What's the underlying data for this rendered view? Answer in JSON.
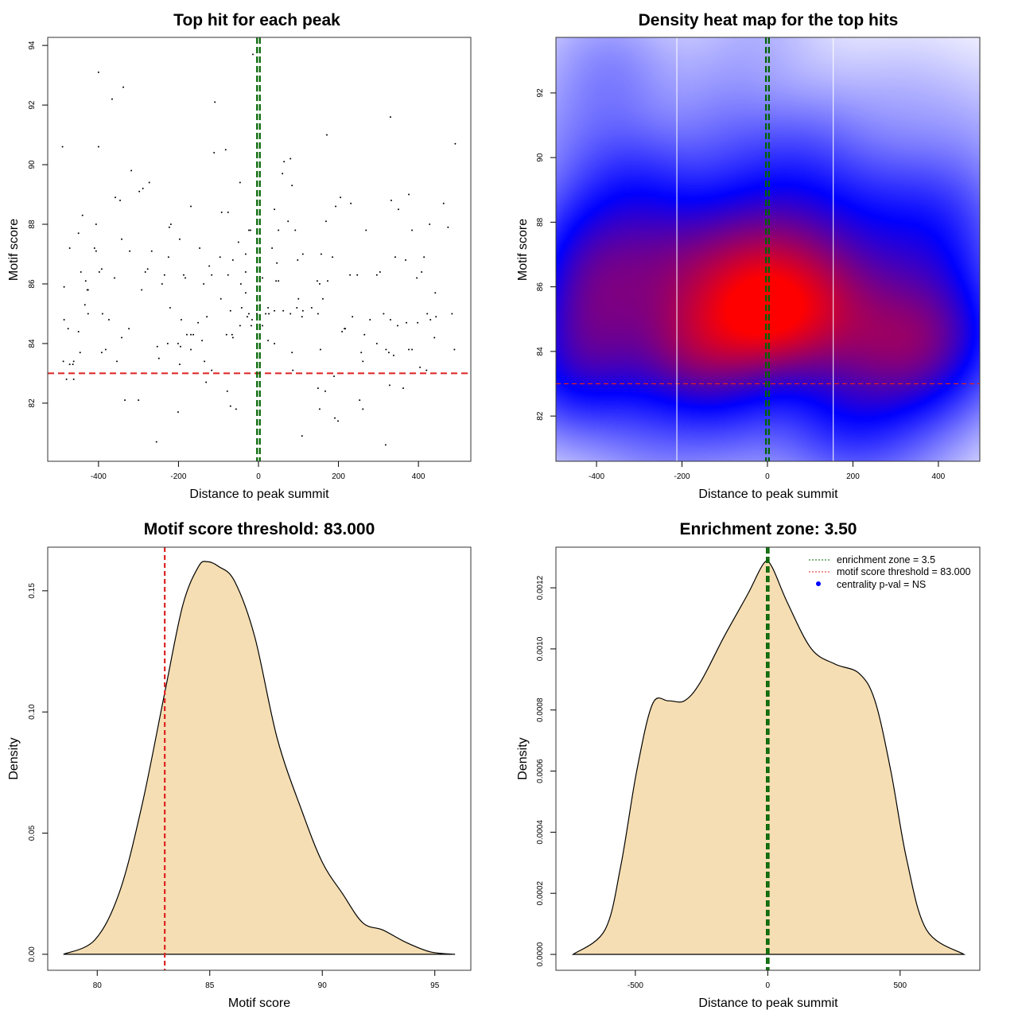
{
  "chart_data": [
    {
      "type": "scatter",
      "title": "Top hit for each peak",
      "xlabel": "Distance to peak summit",
      "ylabel": "Motif score",
      "xlim": [
        -527,
        531
      ],
      "ylim": [
        80.05,
        94.27
      ],
      "xticks": [
        "-400",
        "-200",
        "0",
        "200",
        "400"
      ],
      "xtick_values": [
        -400,
        -200,
        0,
        200,
        400
      ],
      "yticks": [
        "82",
        "84",
        "86",
        "88",
        "90",
        "92",
        "94"
      ],
      "ytick_values": [
        82,
        84,
        86,
        88,
        90,
        92,
        94
      ],
      "hlines": [
        {
          "y": 83,
          "color": "#dd2222",
          "style": "dashed"
        }
      ],
      "vlines": [
        {
          "x": -3.5,
          "color": "#006400",
          "style": "dashed"
        },
        {
          "x": 3.5,
          "color": "#006400",
          "style": "dashed"
        }
      ],
      "points": [
        [
          -490,
          90.6
        ],
        [
          -400,
          93.1
        ],
        [
          -338,
          92.6
        ],
        [
          -366,
          92.2
        ],
        [
          -109,
          92.1
        ],
        [
          -400,
          90.6
        ],
        [
          -318,
          89.8
        ],
        [
          -111,
          90.4
        ],
        [
          -82,
          90.5
        ],
        [
          -14,
          93.7
        ],
        [
          330,
          91.6
        ],
        [
          171,
          91.0
        ],
        [
          492,
          90.7
        ],
        [
          80,
          90.2
        ],
        [
          64,
          90.1
        ],
        [
          60,
          89.7
        ],
        [
          84,
          89.3
        ],
        [
          -273,
          89.4
        ],
        [
          -289,
          89.2
        ],
        [
          -298,
          89.1
        ],
        [
          -358,
          88.9
        ],
        [
          -346,
          88.8
        ],
        [
          -46,
          89.4
        ],
        [
          376,
          89.0
        ],
        [
          205,
          88.9
        ],
        [
          193,
          88.6
        ],
        [
          231,
          88.7
        ],
        [
          463,
          88.7
        ],
        [
          332,
          88.8
        ],
        [
          350,
          88.5
        ],
        [
          40,
          88.5
        ],
        [
          -169,
          88.6
        ],
        [
          -440,
          88.3
        ],
        [
          -92,
          88.4
        ],
        [
          -76,
          88.4
        ],
        [
          -406,
          88.0
        ],
        [
          -219,
          88.0
        ],
        [
          -223,
          87.9
        ],
        [
          74,
          88.1
        ],
        [
          169,
          88.1
        ],
        [
          428,
          88.0
        ],
        [
          474,
          87.9
        ],
        [
          -450,
          87.7
        ],
        [
          -20,
          87.8
        ],
        [
          -24,
          87.8
        ],
        [
          50,
          87.8
        ],
        [
          92,
          87.8
        ],
        [
          269,
          87.8
        ],
        [
          384,
          87.8
        ],
        [
          -342,
          87.5
        ],
        [
          -197,
          87.5
        ],
        [
          -50,
          87.4
        ],
        [
          -472,
          87.2
        ],
        [
          -406,
          87.1
        ],
        [
          -410,
          87.2
        ],
        [
          -322,
          87.1
        ],
        [
          -267,
          87.1
        ],
        [
          -147,
          87.2
        ],
        [
          34,
          87.2
        ],
        [
          157,
          87.0
        ],
        [
          185,
          86.9
        ],
        [
          342,
          86.9
        ],
        [
          368,
          86.8
        ],
        [
          414,
          86.9
        ],
        [
          98,
          86.8
        ],
        [
          111,
          87.0
        ],
        [
          -32,
          87.0
        ],
        [
          46,
          86.7
        ],
        [
          -64,
          86.8
        ],
        [
          -123,
          86.6
        ],
        [
          -96,
          86.9
        ],
        [
          -225,
          86.9
        ],
        [
          -277,
          86.5
        ],
        [
          -283,
          86.4
        ],
        [
          -444,
          86.4
        ],
        [
          -398,
          86.4
        ],
        [
          -392,
          86.5
        ],
        [
          -360,
          86.2
        ],
        [
          -292,
          85.8
        ],
        [
          -235,
          86.3
        ],
        [
          -187,
          86.3
        ],
        [
          -183,
          86.2
        ],
        [
          -241,
          86.0
        ],
        [
          -137,
          86.0
        ],
        [
          -117,
          86.3
        ],
        [
          -44,
          86.0
        ],
        [
          -76,
          86.3
        ],
        [
          4,
          86.5
        ],
        [
          -32,
          86.4
        ],
        [
          10,
          86.2
        ],
        [
          44,
          86.1
        ],
        [
          50,
          86.1
        ],
        [
          100,
          85.5
        ],
        [
          147,
          86.1
        ],
        [
          173,
          86.1
        ],
        [
          229,
          86.3
        ],
        [
          247,
          86.3
        ],
        [
          304,
          86.4
        ],
        [
          296,
          86.3
        ],
        [
          396,
          86.2
        ],
        [
          408,
          86.4
        ],
        [
          442,
          85.7
        ],
        [
          484,
          85.0
        ],
        [
          -486,
          85.9
        ],
        [
          -432,
          86.1
        ],
        [
          -428,
          85.8
        ],
        [
          -426,
          85.8
        ],
        [
          -434,
          85.3
        ],
        [
          -390,
          85.0
        ],
        [
          -374,
          84.8
        ],
        [
          -426,
          85.0
        ],
        [
          -486,
          84.8
        ],
        [
          -476,
          84.5
        ],
        [
          -450,
          84.4
        ],
        [
          -342,
          84.2
        ],
        [
          -392,
          83.7
        ],
        [
          -382,
          83.8
        ],
        [
          -446,
          83.7
        ],
        [
          -488,
          83.4
        ],
        [
          -472,
          83.3
        ],
        [
          -462,
          83.4
        ],
        [
          -464,
          83.3
        ],
        [
          -480,
          82.8
        ],
        [
          -462,
          82.8
        ],
        [
          -354,
          83.4
        ],
        [
          -324,
          84.5
        ],
        [
          -249,
          83.5
        ],
        [
          -221,
          85.2
        ],
        [
          -193,
          84.8
        ],
        [
          -179,
          84.3
        ],
        [
          -169,
          84.3
        ],
        [
          -163,
          84.3
        ],
        [
          -151,
          84.7
        ],
        [
          -141,
          84.1
        ],
        [
          -253,
          83.9
        ],
        [
          -227,
          84.0
        ],
        [
          -201,
          84.0
        ],
        [
          -195,
          83.9
        ],
        [
          -169,
          83.8
        ],
        [
          -129,
          84.9
        ],
        [
          -135,
          83.4
        ],
        [
          -94,
          85.5
        ],
        [
          -70,
          85.1
        ],
        [
          -66,
          84.3
        ],
        [
          -80,
          84.3
        ],
        [
          -64,
          84.2
        ],
        [
          -46,
          84.6
        ],
        [
          -28,
          84.9
        ],
        [
          -16,
          84.8
        ],
        [
          -24,
          85.0
        ],
        [
          -32,
          85.7
        ],
        [
          -42,
          85.2
        ],
        [
          -18,
          84.6
        ],
        [
          -4,
          85.0
        ],
        [
          4,
          85.3
        ],
        [
          10,
          84.6
        ],
        [
          18,
          85.0
        ],
        [
          24,
          85.2
        ],
        [
          26,
          85.0
        ],
        [
          40,
          85.1
        ],
        [
          62,
          85.1
        ],
        [
          80,
          85.0
        ],
        [
          96,
          85.2
        ],
        [
          109,
          84.9
        ],
        [
          111,
          85.1
        ],
        [
          24,
          84.1
        ],
        [
          40,
          84.0
        ],
        [
          84,
          83.7
        ],
        [
          86,
          83.1
        ],
        [
          133,
          85.2
        ],
        [
          149,
          85.0
        ],
        [
          153,
          86.0
        ],
        [
          155,
          83.8
        ],
        [
          161,
          85.5
        ],
        [
          215,
          84.5
        ],
        [
          209,
          84.4
        ],
        [
          217,
          84.5
        ],
        [
          235,
          84.9
        ],
        [
          265,
          84.3
        ],
        [
          279,
          84.8
        ],
        [
          313,
          85.0
        ],
        [
          319,
          83.8
        ],
        [
          330,
          84.8
        ],
        [
          326,
          83.7
        ],
        [
          338,
          83.6
        ],
        [
          348,
          84.6
        ],
        [
          376,
          83.8
        ],
        [
          384,
          83.8
        ],
        [
          398,
          84.7
        ],
        [
          422,
          85.0
        ],
        [
          430,
          84.8
        ],
        [
          440,
          84.2
        ],
        [
          420,
          83.1
        ],
        [
          404,
          83.2
        ],
        [
          490,
          83.8
        ],
        [
          370,
          84.7
        ],
        [
          257,
          83.7
        ],
        [
          261,
          83.4
        ],
        [
          296,
          84.0
        ],
        [
          444,
          84.9
        ],
        [
          -334,
          82.1
        ],
        [
          -300,
          82.1
        ],
        [
          -201,
          81.7
        ],
        [
          -255,
          80.7
        ],
        [
          -131,
          82.7
        ],
        [
          -78,
          82.4
        ],
        [
          -70,
          81.9
        ],
        [
          -56,
          81.8
        ],
        [
          -117,
          83.1
        ],
        [
          109,
          80.9
        ],
        [
          149,
          82.5
        ],
        [
          167,
          82.4
        ],
        [
          153,
          81.8
        ],
        [
          191,
          81.5
        ],
        [
          199,
          81.4
        ],
        [
          328,
          82.6
        ],
        [
          362,
          82.5
        ],
        [
          318,
          80.6
        ],
        [
          253,
          82.1
        ],
        [
          261,
          81.8
        ],
        [
          189,
          82.9
        ],
        [
          -197,
          83.3
        ]
      ]
    },
    {
      "type": "heatmap",
      "title": "Density heat map for the top hits",
      "xlabel": "Distance to peak summit",
      "ylabel": "Motif score",
      "xlim": [
        -495,
        497
      ],
      "ylim": [
        80.6,
        93.72
      ],
      "xticks": [
        "-400",
        "-200",
        "0",
        "200",
        "400"
      ],
      "xtick_values": [
        -400,
        -200,
        0,
        200,
        400
      ],
      "yticks": [
        "82",
        "84",
        "86",
        "88",
        "90",
        "92"
      ],
      "ytick_values": [
        82,
        84,
        86,
        88,
        90,
        92
      ],
      "color_scale": [
        "#ffffff",
        "#0000ff",
        "#ff0000"
      ],
      "source": "density of the top-hit points",
      "hlines": [
        {
          "y": 83,
          "color": "#dd2222",
          "style": "dashed"
        }
      ],
      "vlines": [
        {
          "x": -3.5,
          "color": "#006400",
          "style": "dashed"
        },
        {
          "x": 3.5,
          "color": "#006400",
          "style": "dashed"
        },
        {
          "x": -212,
          "color": "#ffffff",
          "style": "solid"
        },
        {
          "x": 154,
          "color": "#ffffff",
          "style": "solid"
        }
      ]
    },
    {
      "type": "area",
      "title": "Motif score threshold: 83.000",
      "xlabel": "Motif score",
      "ylabel": "Density",
      "xlim": [
        77.8,
        96.6
      ],
      "ylim": [
        -0.0066,
        0.168
      ],
      "xticks": [
        "80",
        "85",
        "90",
        "95"
      ],
      "xtick_values": [
        80,
        85,
        90,
        95
      ],
      "yticks": [
        "0.00",
        "0.05",
        "0.10",
        "0.15"
      ],
      "ytick_values": [
        0,
        0.05,
        0.1,
        0.15
      ],
      "fill": "#f5deb3",
      "vlines": [
        {
          "x": 83,
          "color": "#dd2222",
          "style": "dashed"
        }
      ],
      "x": [
        78.5,
        79.9,
        81.0,
        82.0,
        83.0,
        83.8,
        84.5,
        84.9,
        85.4,
        86.1,
        87.0,
        88.0,
        89.1,
        90.0,
        90.9,
        91.8,
        92.7,
        93.7,
        94.8,
        95.9
      ],
      "y": [
        0,
        0.006,
        0.026,
        0.062,
        0.108,
        0.144,
        0.16,
        0.162,
        0.16,
        0.154,
        0.131,
        0.089,
        0.059,
        0.038,
        0.025,
        0.013,
        0.01,
        0.005,
        0.001,
        0
      ]
    },
    {
      "type": "area",
      "title": "Enrichment zone: 3.50",
      "xlabel": "Distance to peak summit",
      "ylabel": "Density",
      "xlim": [
        -800,
        801
      ],
      "ylim": [
        -5.2e-05,
        0.001333
      ],
      "xticks": [
        "-500",
        "0",
        "500"
      ],
      "xtick_values": [
        -500,
        0,
        500
      ],
      "yticks": [
        "0.0000",
        "0.0002",
        "0.0004",
        "0.0006",
        "0.0008",
        "0.0010",
        "0.0012"
      ],
      "ytick_values": [
        0,
        0.0002,
        0.0004,
        0.0006,
        0.0008,
        0.001,
        0.0012
      ],
      "fill": "#f5deb3",
      "vlines": [
        {
          "x": -3.5,
          "color": "#006400",
          "style": "dashed"
        },
        {
          "x": 3.5,
          "color": "#006400",
          "style": "dashed"
        }
      ],
      "x": [
        -735,
        -615,
        -555,
        -495,
        -435,
        -375,
        -315,
        -255,
        -165,
        -75,
        -15,
        15,
        75,
        165,
        255,
        345,
        405,
        465,
        525,
        600,
        741
      ],
      "y": [
        0,
        8e-05,
        0.00029,
        0.0006,
        0.00082,
        0.00083,
        0.00083,
        0.00089,
        0.00104,
        0.00118,
        0.00128,
        0.00127,
        0.00115,
        0.001,
        0.00095,
        0.00092,
        0.00083,
        0.0006,
        0.00031,
        8e-05,
        0
      ],
      "legend": {
        "position": "top-right",
        "entries": [
          {
            "label": "enrichment zone = 3.5",
            "color": "#006400",
            "style": "dotted"
          },
          {
            "label": "motif score threshold = 83.000",
            "color": "#dd2222",
            "style": "dotted"
          },
          {
            "label": "centrality p-val = NS",
            "color": "#0000ff",
            "style": "dot"
          }
        ]
      }
    }
  ]
}
